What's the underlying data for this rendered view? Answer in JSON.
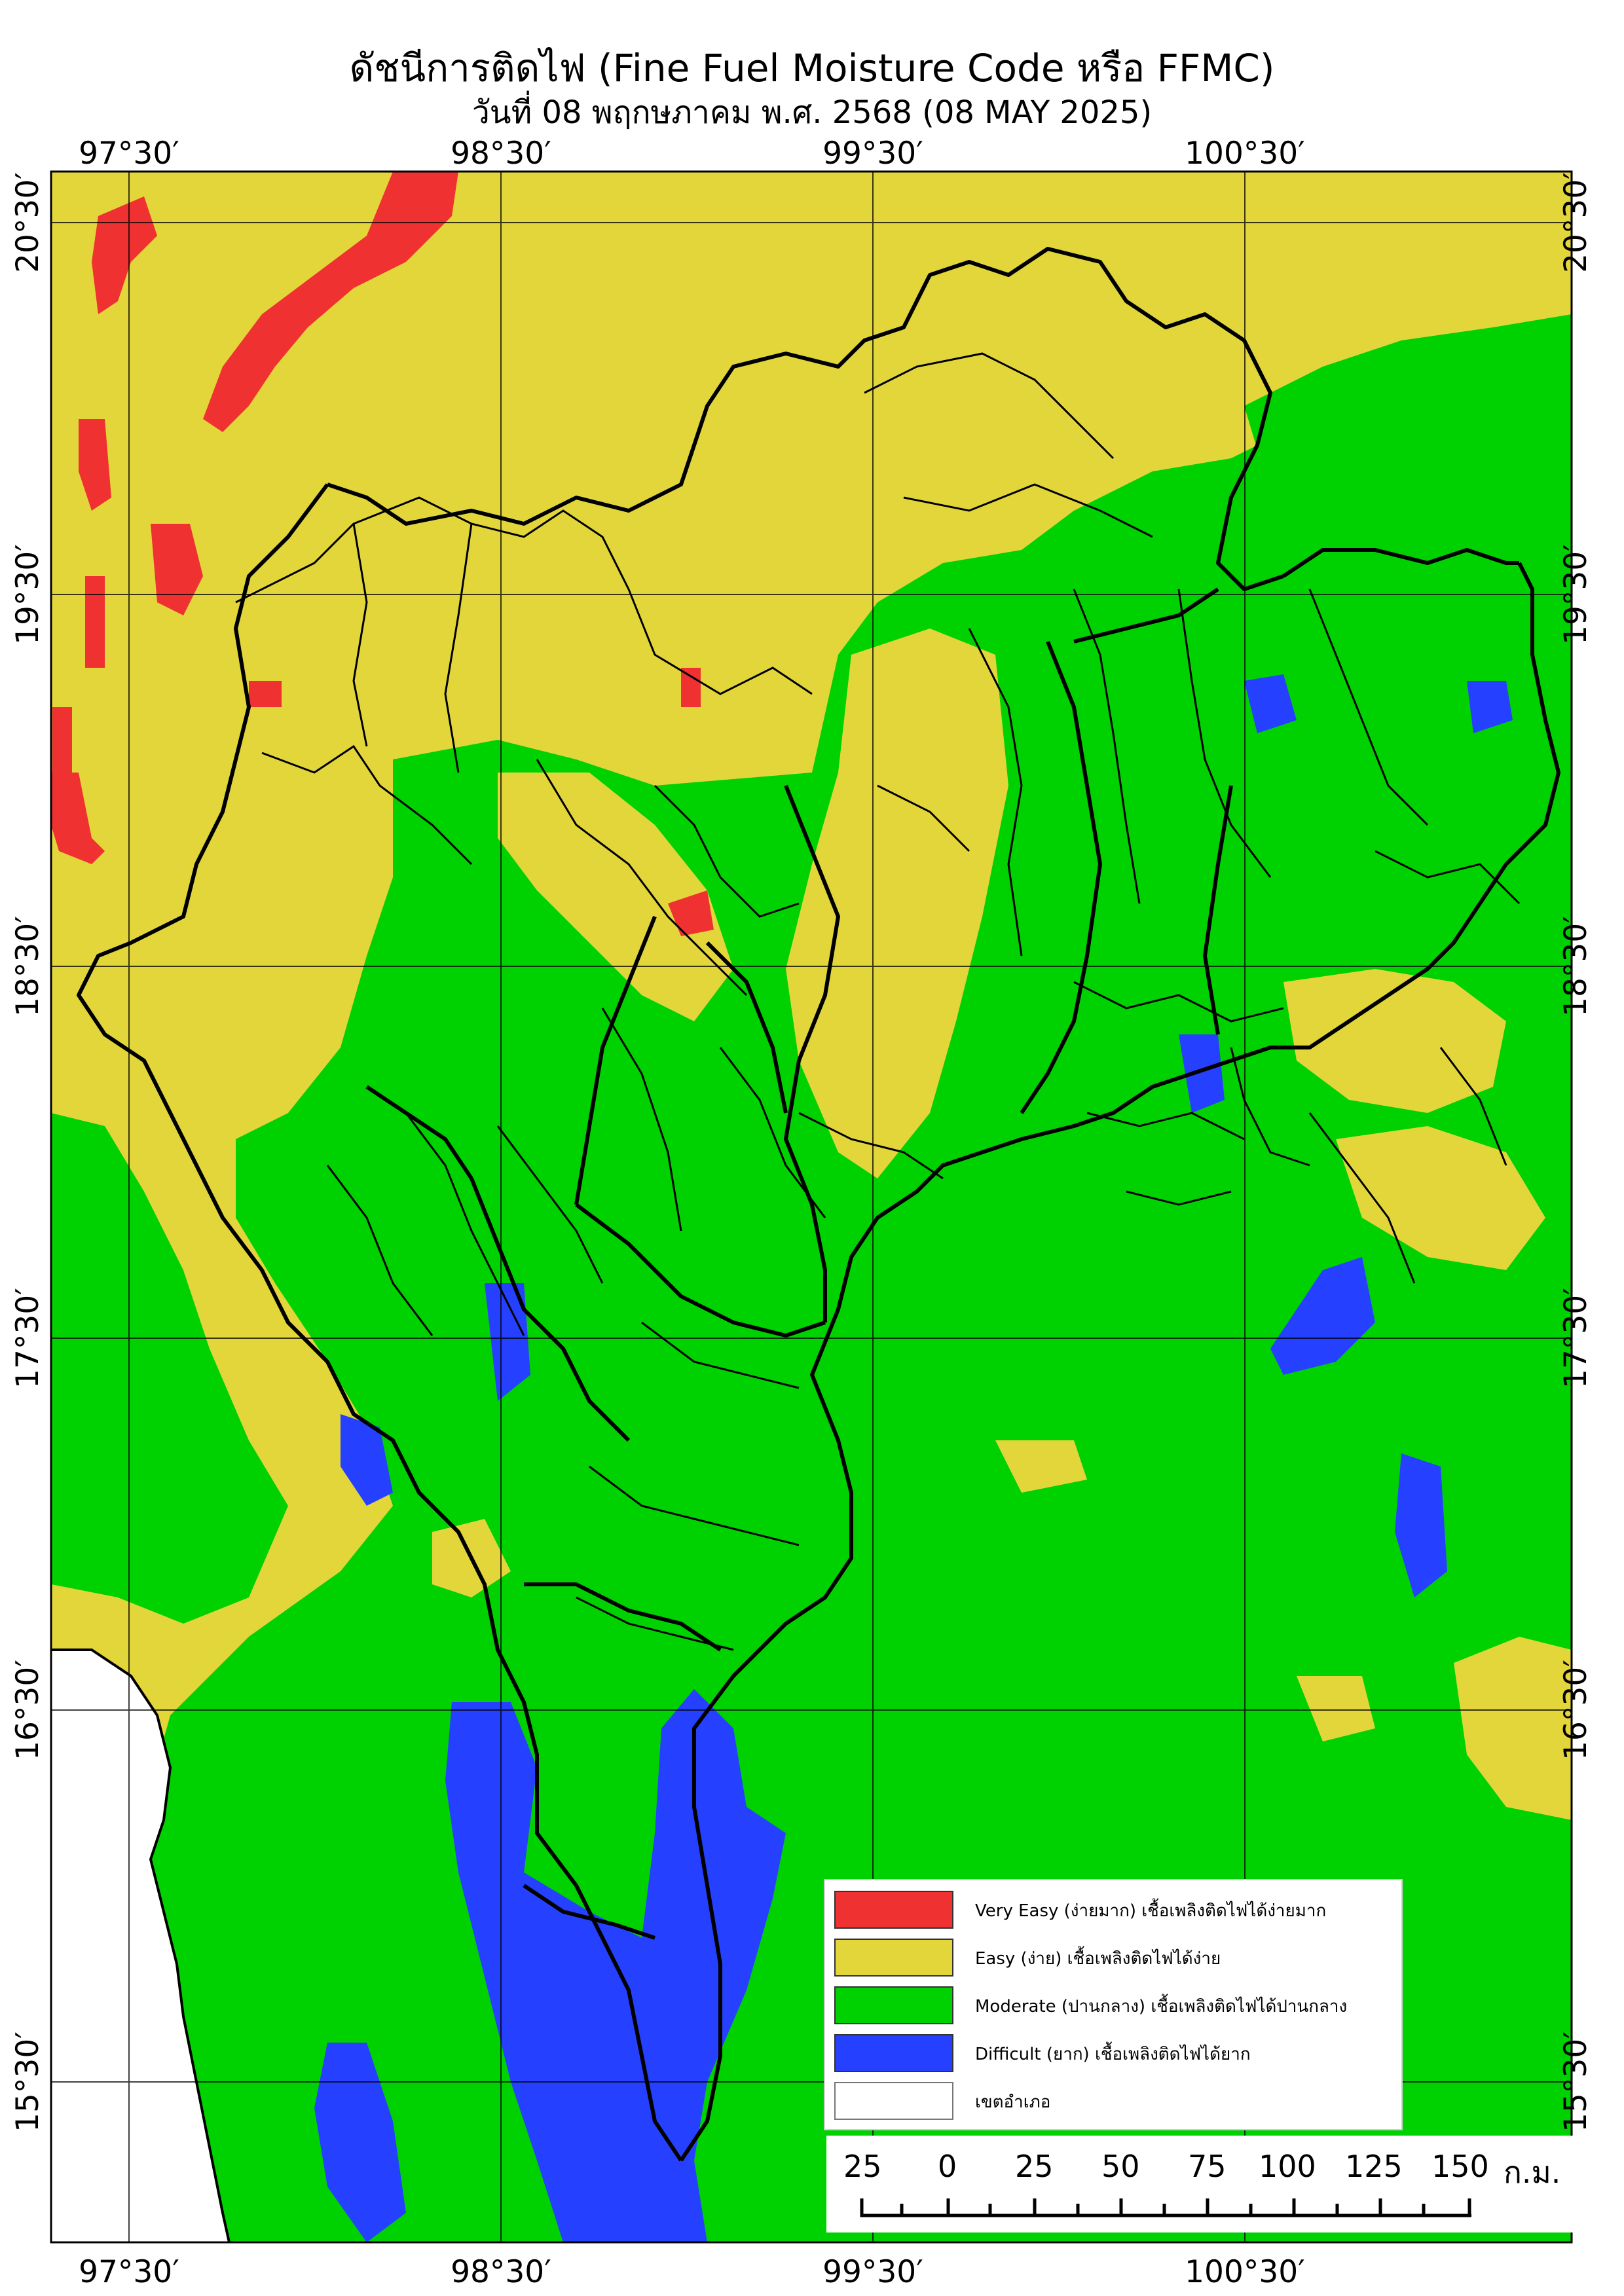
{
  "header": {
    "title": "ดัชนีการติดไฟ (Fine Fuel Moisture Code หรือ FFMC)",
    "subtitle": "วันที่ 08 พฤกษภาคม พ.ศ. 2568 (08 MAY 2025)"
  },
  "axes": {
    "longitude_labels": [
      "97°30′",
      "98°30′",
      "99°30′",
      "100°30′"
    ],
    "latitude_labels": [
      "20°30′",
      "19°30′",
      "18°30′",
      "17°30′",
      "16°30′",
      "15°30′"
    ]
  },
  "legend": {
    "items": [
      {
        "label": "Very Easy (ง่ายมาก) เชื้อเพลิงติดไฟได้ง่ายมาก",
        "color": "#ef3131"
      },
      {
        "label": "Easy (ง่าย) เชื้อเพลิงติดไฟได้ง่าย",
        "color": "#e3d63a"
      },
      {
        "label": "Moderate (ปานกลาง) เชื้อเพลิงติดไฟได้ปานกลาง",
        "color": "#00d100"
      },
      {
        "label": "Difficult (ยาก) เชื้อเพลิงติดไฟได้ยาก",
        "color": "#2640ff"
      },
      {
        "label": "เขตอำเภอ",
        "color": "#ffffff"
      }
    ]
  },
  "scale_bar": {
    "numbers": [
      "25",
      "0",
      "25",
      "50",
      "75",
      "100",
      "125",
      "150"
    ],
    "unit": "ก.ม."
  },
  "colors": {
    "very_easy": "#ef3131",
    "easy": "#e3d63a",
    "moderate": "#00d100",
    "difficult": "#2640ff",
    "boundary": "#000000",
    "sea": "#ffffff"
  }
}
